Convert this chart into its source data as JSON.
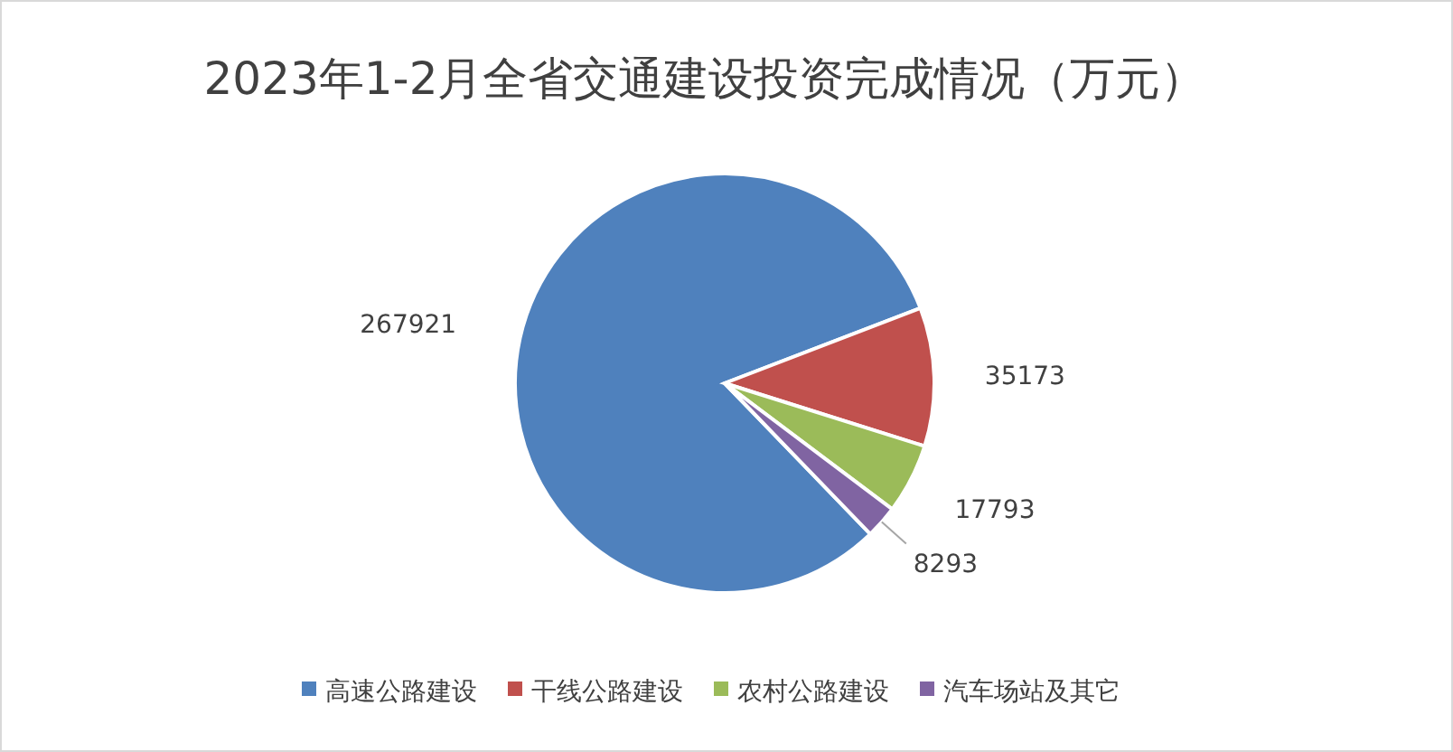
{
  "chart_data": {
    "type": "pie",
    "title": "2023年1-2月全省交通建设投资完成情况（万元）",
    "categories": [
      "高速公路建设",
      "干线公路建设",
      "农村公路建设",
      "汽车场站及其它"
    ],
    "values": [
      267921,
      35173,
      17793,
      8293
    ],
    "colors": [
      "#4f81bd",
      "#c0504d",
      "#9bbb59",
      "#8064a2"
    ],
    "data_labels": true,
    "legend": "bottom"
  }
}
